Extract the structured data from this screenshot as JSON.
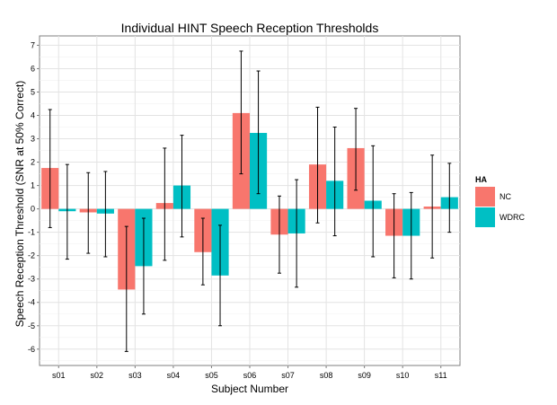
{
  "chart_data": {
    "type": "bar",
    "title": "Individual HINT Speech Reception Thresholds",
    "xlabel": "Subject Number",
    "ylabel": "Speech Reception Threshold (SNR at 50% Correct)",
    "categories": [
      "s01",
      "s02",
      "s03",
      "s04",
      "s05",
      "s06",
      "s07",
      "s08",
      "s09",
      "s10",
      "s11"
    ],
    "ylim": [
      -6.7,
      7.4
    ],
    "yticks": [
      -6,
      -5,
      -4,
      -3,
      -2,
      -1,
      0,
      1,
      2,
      3,
      4,
      5,
      6,
      7
    ],
    "grid": true,
    "legend": {
      "title": "HA",
      "position": "right"
    },
    "series": [
      {
        "name": "NC",
        "color": "#F8766D",
        "values": [
          1.75,
          -0.15,
          -3.45,
          0.25,
          -1.85,
          4.1,
          -1.1,
          1.9,
          2.6,
          -1.15,
          0.1
        ],
        "err_low": [
          -0.8,
          -1.9,
          -6.1,
          -2.2,
          -3.25,
          1.5,
          -2.75,
          -0.6,
          0.8,
          -2.95,
          -2.1
        ],
        "err_high": [
          4.25,
          1.55,
          -0.75,
          2.6,
          -0.4,
          6.75,
          0.55,
          4.35,
          4.3,
          0.65,
          2.3
        ]
      },
      {
        "name": "WDRC",
        "color": "#00BFC4",
        "values": [
          -0.1,
          -0.2,
          -2.45,
          1.0,
          -2.85,
          3.25,
          -1.05,
          1.2,
          0.35,
          -1.15,
          0.5
        ],
        "err_low": [
          -2.15,
          -2.05,
          -4.5,
          -1.2,
          -5.0,
          0.65,
          -3.35,
          -1.15,
          -2.05,
          -3.0,
          -1.0
        ],
        "err_high": [
          1.9,
          1.6,
          -0.4,
          3.15,
          -0.7,
          5.9,
          1.25,
          3.5,
          2.7,
          0.7,
          1.95
        ]
      }
    ]
  }
}
